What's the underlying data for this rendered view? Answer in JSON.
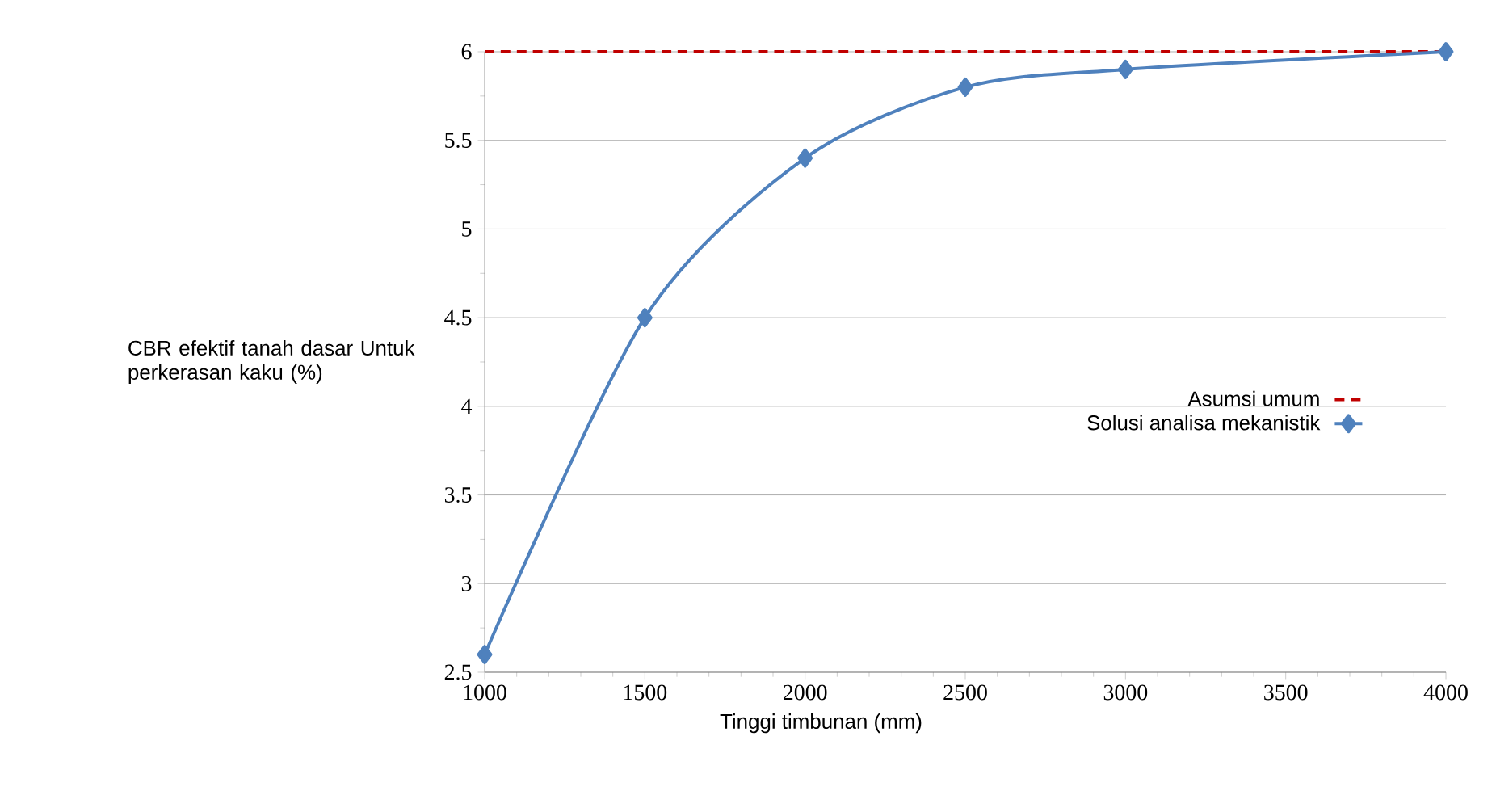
{
  "chart_data": {
    "type": "line",
    "xlabel": "Tinggi timbunan (mm)",
    "ylabel": "CBR efektif tanah dasar Untuk perkerasan kaku (%)",
    "x": [
      1000,
      1500,
      2000,
      2500,
      3000,
      4000
    ],
    "series": [
      {
        "name": "Asumsi umum",
        "color": "#c00000",
        "x": [
          1000,
          4000
        ],
        "values": [
          6,
          6
        ],
        "line_style": "dashed",
        "marker": "none"
      },
      {
        "name": "Solusi analisa mekanistik",
        "color": "#4f81bd",
        "values": [
          2.6,
          4.5,
          5.4,
          5.8,
          5.9,
          6.0
        ],
        "line_style": "solid",
        "marker": "diamond"
      }
    ],
    "xlim": [
      1000,
      4000
    ],
    "ylim": [
      2.5,
      6
    ],
    "xticks": [
      1000,
      1500,
      2000,
      2500,
      3000,
      3500,
      4000
    ],
    "yticks": [
      2.5,
      3,
      3.5,
      4,
      4.5,
      5,
      5.5,
      6
    ],
    "grid": "y",
    "legend": "center right"
  }
}
